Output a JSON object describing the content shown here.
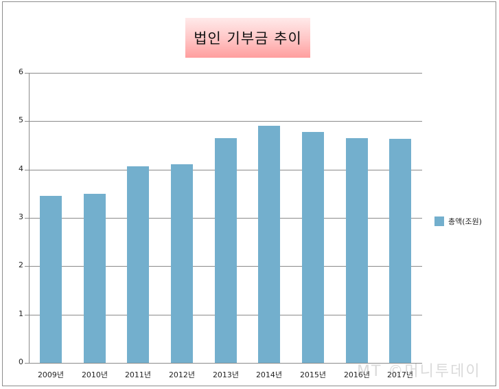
{
  "chart_data": {
    "type": "bar",
    "title": "법인 기부금 추이",
    "categories": [
      "2009년",
      "2010년",
      "2011년",
      "2012년",
      "2013년",
      "2014년",
      "2015년",
      "2016년",
      "2017년"
    ],
    "series": [
      {
        "name": "총액(조원)",
        "color": "#73afcd",
        "values": [
          3.46,
          3.5,
          4.07,
          4.11,
          4.65,
          4.91,
          4.78,
          4.65,
          4.64
        ]
      }
    ],
    "xlabel": "",
    "ylabel": "",
    "ylim": [
      0,
      6
    ],
    "yticks": [
      "0",
      "1",
      "2",
      "3",
      "4",
      "5",
      "6"
    ],
    "grid": true,
    "legend_position": "right"
  },
  "title": "법인 기부금 추이",
  "legend": {
    "label": "총액(조원)"
  },
  "watermark": "MT ©머니투데이"
}
